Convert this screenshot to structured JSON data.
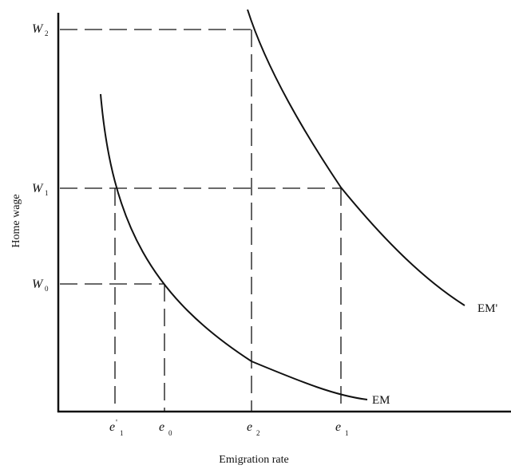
{
  "axes": {
    "xlabel": "Emigration rate",
    "ylabel": "Home wage"
  },
  "wage_levels": [
    {
      "id": "w2",
      "letter": "W",
      "sub": "2"
    },
    {
      "id": "w1",
      "letter": "W",
      "sub": "1"
    },
    {
      "id": "w0",
      "letter": "W",
      "sub": "0"
    }
  ],
  "emigration_levels": [
    {
      "id": "e1p",
      "letter": "e",
      "sup": "'",
      "sub": "1"
    },
    {
      "id": "e0",
      "letter": "e",
      "sup": "",
      "sub": "0"
    },
    {
      "id": "e2",
      "letter": "e",
      "sup": "",
      "sub": "2"
    },
    {
      "id": "e1",
      "letter": "e",
      "sup": "",
      "sub": "1"
    }
  ],
  "curves": {
    "em": {
      "label": "EM"
    },
    "em_prime": {
      "label": "EM'"
    }
  }
}
